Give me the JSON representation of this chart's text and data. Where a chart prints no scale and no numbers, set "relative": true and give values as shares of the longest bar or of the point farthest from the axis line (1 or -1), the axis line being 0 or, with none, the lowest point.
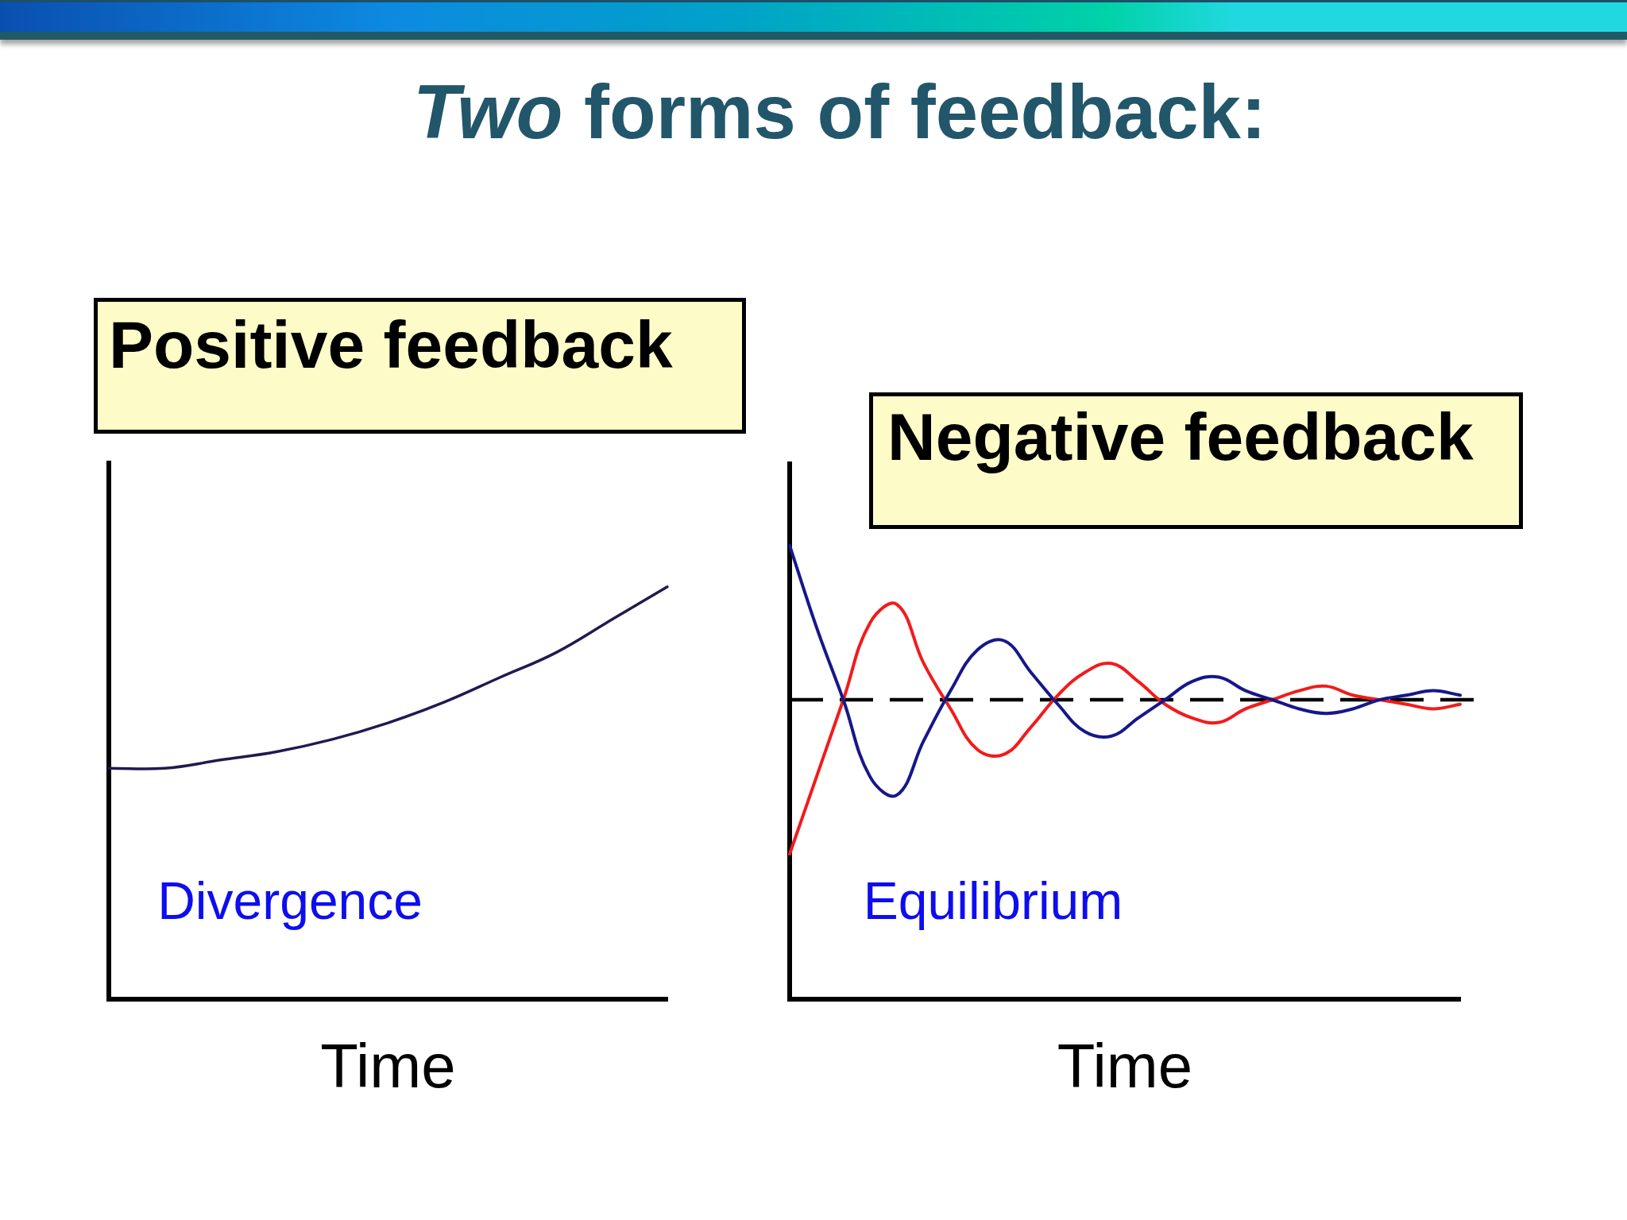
{
  "chart_data": [
    {
      "type": "other",
      "title": "Two forms of feedback:"
    },
    {
      "type": "line",
      "title": "Positive feedback",
      "xlabel": "Time",
      "annotations": [
        "Divergence"
      ],
      "relative": true,
      "marker": "none",
      "categories": [
        null,
        null,
        null,
        null,
        null,
        null,
        null,
        null,
        null,
        null,
        null
      ],
      "series": [
        {
          "color": "#201a50",
          "values": [
            0.56,
            0.56,
            0.58,
            0.6,
            0.63,
            0.67,
            0.72,
            0.78,
            0.84,
            0.92,
            1
          ]
        }
      ]
    },
    {
      "type": "line",
      "title": "Negative feedback",
      "xlabel": "Time",
      "annotations": [
        "Equilibrium"
      ],
      "relative": true,
      "marker": "none",
      "categories": [
        null,
        null,
        null,
        null,
        null,
        null,
        null,
        null,
        null,
        null,
        null,
        null,
        null,
        null,
        null,
        null,
        null,
        null,
        null,
        null,
        null,
        null,
        null,
        null,
        null,
        null
      ],
      "series": [
        {
          "color": "#17178a",
          "values": [
            1,
            0.82,
            0.66,
            0.49,
            0.45,
            0.57,
            0.68,
            0.77,
            0.79,
            0.72,
            0.65,
            0.59,
            0.58,
            0.62,
            0.66,
            0.7,
            0.71,
            0.68,
            0.66,
            0.64,
            0.63,
            0.64,
            0.66,
            0.67,
            0.68,
            0.67
          ]
        },
        {
          "color": "#f21b1b",
          "values": [
            0.32,
            0.49,
            0.66,
            0.83,
            0.87,
            0.74,
            0.64,
            0.55,
            0.54,
            0.6,
            0.67,
            0.72,
            0.74,
            0.7,
            0.65,
            0.62,
            0.61,
            0.64,
            0.66,
            0.68,
            0.69,
            0.67,
            0.66,
            0.65,
            0.64,
            0.65
          ]
        }
      ],
      "ref_lines": [
        {
          "axis": "y",
          "value": 0.66,
          "color": "#000000",
          "line_style": "dashed"
        }
      ]
    }
  ]
}
